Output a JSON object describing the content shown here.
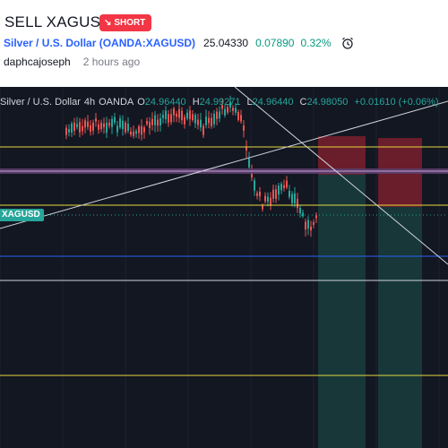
{
  "header": {
    "title": "SELL XAGUSD",
    "badge": "SHORT",
    "symbol_name": "Silver / U.S. Dollar (OANDA:XAGUSD)",
    "price": "25.04330",
    "change": "0.07890",
    "change_pct": "0.32%",
    "author": "daphcajoseph",
    "time": "2 hours ago"
  },
  "chart": {
    "legend": {
      "symbol": "Silver / U.S. Dollar",
      "interval": "4h",
      "exchange": "OANDA",
      "o_label": "O",
      "o_val": "24.96440",
      "h_label": "H",
      "h_val": "24.99271",
      "l_label": "L",
      "l_val": "24.96440",
      "c_label": "C",
      "c_val": "24.98050",
      "chg": "+0.01610 (+0.06%)"
    },
    "price_label": "XAGUSD",
    "colors": {
      "up": "#26a69a",
      "down": "#ef5350",
      "background": "#131722",
      "level": "#e6d83f"
    }
  }
}
